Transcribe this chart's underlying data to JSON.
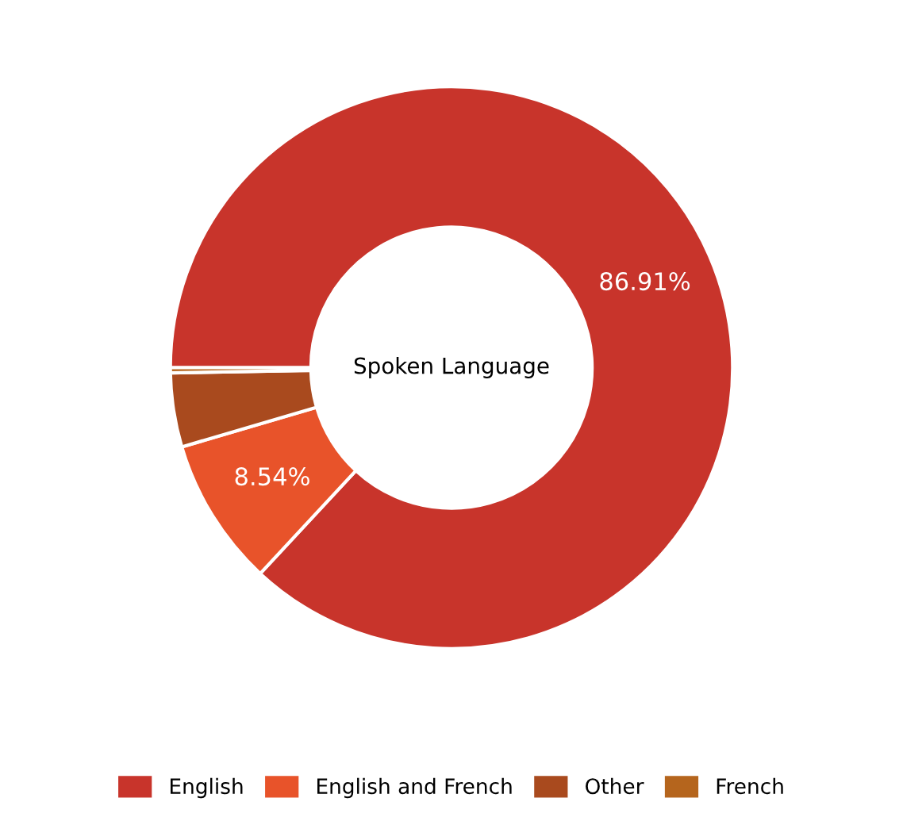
{
  "chart_data": {
    "type": "donut",
    "title": "Spoken Language",
    "categories": [
      "English",
      "English and French",
      "Other",
      "French"
    ],
    "values": [
      86.91,
      8.54,
      4.25,
      0.3
    ],
    "colors": [
      "#c8342b",
      "#e8532a",
      "#a94a1e",
      "#b5651d"
    ],
    "value_labels": [
      "86.91%",
      "8.54%",
      null,
      null
    ],
    "legend": "bottom"
  }
}
